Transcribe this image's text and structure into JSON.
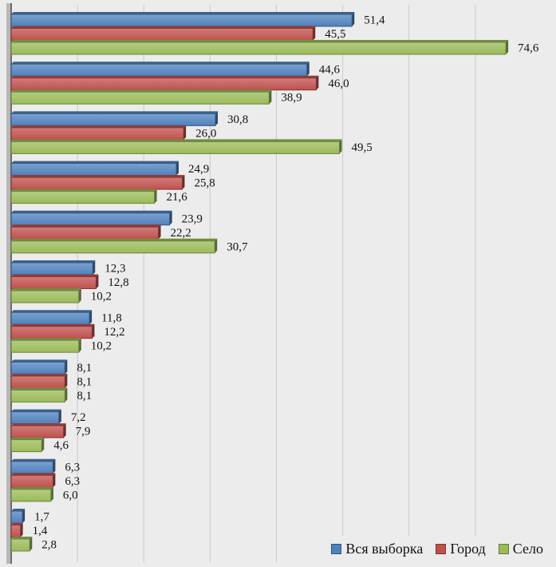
{
  "chart_data": {
    "type": "bar",
    "orientation": "horizontal",
    "title": "",
    "xlabel": "",
    "ylabel": "",
    "xlim": [
      0,
      80
    ],
    "grid": true,
    "legend_position": "bottom-right",
    "category_count": 11,
    "series": [
      {
        "name": "Вся выборка",
        "color": "#4f81bd",
        "values": [
          51.4,
          44.6,
          30.8,
          24.9,
          23.9,
          12.3,
          11.8,
          8.1,
          7.2,
          6.3,
          1.7
        ],
        "labels": [
          "51,4",
          "44,6",
          "30,8",
          "24,9",
          "23,9",
          "12,3",
          "11,8",
          "8,1",
          "7,2",
          "6,3",
          "1,7"
        ]
      },
      {
        "name": "Город",
        "color": "#c0504d",
        "values": [
          45.5,
          46.0,
          26.0,
          25.8,
          22.2,
          12.8,
          12.2,
          8.1,
          7.9,
          6.3,
          1.4
        ],
        "labels": [
          "45,5",
          "46,0",
          "26,0",
          "25,8",
          "22,2",
          "12,8",
          "12,2",
          "8,1",
          "7,9",
          "6,3",
          "1,4"
        ]
      },
      {
        "name": "Село",
        "color": "#9bbb59",
        "values": [
          74.6,
          38.9,
          49.5,
          21.6,
          30.7,
          10.2,
          10.2,
          8.1,
          4.6,
          6.0,
          2.8
        ],
        "labels": [
          "74,6",
          "38,9",
          "49,5",
          "21,6",
          "30,7",
          "10,2",
          "10,2",
          "8,1",
          "4,6",
          "6,0",
          "2,8"
        ]
      }
    ]
  }
}
